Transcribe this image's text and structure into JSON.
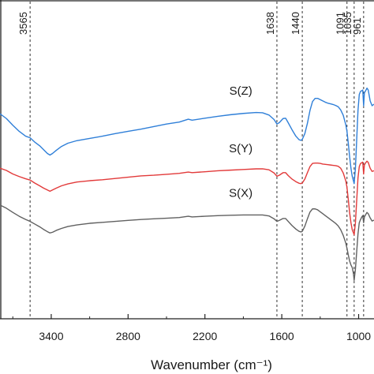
{
  "chart_data": {
    "type": "line",
    "xlabel": "Wavenumber (cm⁻¹)",
    "ylabel": "",
    "x_reversed": true,
    "xlim": [
      3800,
      880
    ],
    "ylim": [
      0,
      1
    ],
    "x_ticks": [
      3400,
      2800,
      2200,
      1600,
      1000
    ],
    "grid": false,
    "peak_markers": [
      "3565",
      "1638",
      "1440",
      "1091",
      "1035",
      "961"
    ],
    "series": [
      {
        "name": "S(Z)",
        "color": "#2f7fd8",
        "points": [
          [
            3800,
            0.64
          ],
          [
            3750,
            0.625
          ],
          [
            3700,
            0.604
          ],
          [
            3650,
            0.585
          ],
          [
            3600,
            0.57
          ],
          [
            3565,
            0.565
          ],
          [
            3530,
            0.552
          ],
          [
            3490,
            0.54
          ],
          [
            3460,
            0.528
          ],
          [
            3430,
            0.516
          ],
          [
            3410,
            0.511
          ],
          [
            3390,
            0.516
          ],
          [
            3360,
            0.526
          ],
          [
            3320,
            0.538
          ],
          [
            3270,
            0.548
          ],
          [
            3200,
            0.556
          ],
          [
            3100,
            0.563
          ],
          [
            3000,
            0.57
          ],
          [
            2900,
            0.578
          ],
          [
            2800,
            0.585
          ],
          [
            2700,
            0.592
          ],
          [
            2600,
            0.6
          ],
          [
            2500,
            0.608
          ],
          [
            2400,
            0.614
          ],
          [
            2330,
            0.623
          ],
          [
            2300,
            0.62
          ],
          [
            2200,
            0.626
          ],
          [
            2100,
            0.632
          ],
          [
            2000,
            0.637
          ],
          [
            1900,
            0.641
          ],
          [
            1800,
            0.644
          ],
          [
            1750,
            0.643
          ],
          [
            1700,
            0.636
          ],
          [
            1660,
            0.622
          ],
          [
            1638,
            0.608
          ],
          [
            1620,
            0.612
          ],
          [
            1590,
            0.625
          ],
          [
            1570,
            0.626
          ],
          [
            1550,
            0.612
          ],
          [
            1520,
            0.59
          ],
          [
            1490,
            0.57
          ],
          [
            1465,
            0.559
          ],
          [
            1450,
            0.557
          ],
          [
            1440,
            0.56
          ],
          [
            1420,
            0.578
          ],
          [
            1400,
            0.61
          ],
          [
            1380,
            0.65
          ],
          [
            1360,
            0.678
          ],
          [
            1340,
            0.688
          ],
          [
            1320,
            0.688
          ],
          [
            1300,
            0.684
          ],
          [
            1280,
            0.68
          ],
          [
            1260,
            0.676
          ],
          [
            1240,
            0.673
          ],
          [
            1220,
            0.671
          ],
          [
            1200,
            0.669
          ],
          [
            1180,
            0.666
          ],
          [
            1160,
            0.662
          ],
          [
            1140,
            0.652
          ],
          [
            1120,
            0.635
          ],
          [
            1100,
            0.605
          ],
          [
            1091,
            0.585
          ],
          [
            1080,
            0.545
          ],
          [
            1070,
            0.505
          ],
          [
            1060,
            0.47
          ],
          [
            1050,
            0.445
          ],
          [
            1040,
            0.43
          ],
          [
            1035,
            0.422
          ],
          [
            1025,
            0.47
          ],
          [
            1015,
            0.56
          ],
          [
            1005,
            0.65
          ],
          [
            995,
            0.7
          ],
          [
            985,
            0.71
          ],
          [
            975,
            0.712
          ],
          [
            968,
            0.714
          ],
          [
            961,
            0.665
          ],
          [
            955,
            0.705
          ],
          [
            945,
            0.712
          ],
          [
            935,
            0.72
          ],
          [
            925,
            0.714
          ],
          [
            910,
            0.68
          ],
          [
            895,
            0.665
          ],
          [
            880,
            0.67
          ]
        ]
      },
      {
        "name": "S(Y)",
        "color": "#e23a3a",
        "points": [
          [
            3800,
            0.47
          ],
          [
            3750,
            0.463
          ],
          [
            3700,
            0.452
          ],
          [
            3650,
            0.444
          ],
          [
            3600,
            0.437
          ],
          [
            3565,
            0.433
          ],
          [
            3530,
            0.424
          ],
          [
            3490,
            0.415
          ],
          [
            3460,
            0.408
          ],
          [
            3430,
            0.402
          ],
          [
            3410,
            0.398
          ],
          [
            3390,
            0.402
          ],
          [
            3360,
            0.408
          ],
          [
            3320,
            0.415
          ],
          [
            3270,
            0.421
          ],
          [
            3200,
            0.427
          ],
          [
            3100,
            0.431
          ],
          [
            3000,
            0.434
          ],
          [
            2900,
            0.438
          ],
          [
            2800,
            0.442
          ],
          [
            2700,
            0.446
          ],
          [
            2600,
            0.448
          ],
          [
            2500,
            0.451
          ],
          [
            2400,
            0.454
          ],
          [
            2330,
            0.458
          ],
          [
            2300,
            0.456
          ],
          [
            2200,
            0.459
          ],
          [
            2100,
            0.462
          ],
          [
            2000,
            0.464
          ],
          [
            1900,
            0.466
          ],
          [
            1800,
            0.468
          ],
          [
            1750,
            0.468
          ],
          [
            1700,
            0.465
          ],
          [
            1660,
            0.455
          ],
          [
            1638,
            0.445
          ],
          [
            1620,
            0.448
          ],
          [
            1590,
            0.456
          ],
          [
            1570,
            0.456
          ],
          [
            1550,
            0.447
          ],
          [
            1520,
            0.436
          ],
          [
            1490,
            0.428
          ],
          [
            1465,
            0.423
          ],
          [
            1450,
            0.422
          ],
          [
            1440,
            0.424
          ],
          [
            1420,
            0.436
          ],
          [
            1400,
            0.456
          ],
          [
            1380,
            0.475
          ],
          [
            1360,
            0.485
          ],
          [
            1340,
            0.486
          ],
          [
            1320,
            0.486
          ],
          [
            1300,
            0.485
          ],
          [
            1280,
            0.483
          ],
          [
            1260,
            0.482
          ],
          [
            1240,
            0.481
          ],
          [
            1220,
            0.48
          ],
          [
            1200,
            0.479
          ],
          [
            1180,
            0.478
          ],
          [
            1160,
            0.476
          ],
          [
            1140,
            0.47
          ],
          [
            1120,
            0.455
          ],
          [
            1100,
            0.43
          ],
          [
            1091,
            0.41
          ],
          [
            1080,
            0.37
          ],
          [
            1070,
            0.33
          ],
          [
            1060,
            0.3
          ],
          [
            1050,
            0.278
          ],
          [
            1040,
            0.268
          ],
          [
            1035,
            0.262
          ],
          [
            1025,
            0.3
          ],
          [
            1015,
            0.37
          ],
          [
            1005,
            0.44
          ],
          [
            995,
            0.475
          ],
          [
            985,
            0.485
          ],
          [
            975,
            0.487
          ],
          [
            968,
            0.489
          ],
          [
            961,
            0.452
          ],
          [
            955,
            0.48
          ],
          [
            945,
            0.487
          ],
          [
            935,
            0.492
          ],
          [
            925,
            0.488
          ],
          [
            910,
            0.47
          ],
          [
            895,
            0.46
          ],
          [
            880,
            0.462
          ]
        ]
      },
      {
        "name": "S(X)",
        "color": "#606060",
        "points": [
          [
            3800,
            0.355
          ],
          [
            3750,
            0.345
          ],
          [
            3700,
            0.332
          ],
          [
            3650,
            0.32
          ],
          [
            3600,
            0.31
          ],
          [
            3565,
            0.304
          ],
          [
            3530,
            0.296
          ],
          [
            3490,
            0.287
          ],
          [
            3460,
            0.279
          ],
          [
            3430,
            0.272
          ],
          [
            3410,
            0.268
          ],
          [
            3390,
            0.27
          ],
          [
            3360,
            0.276
          ],
          [
            3320,
            0.282
          ],
          [
            3270,
            0.288
          ],
          [
            3200,
            0.293
          ],
          [
            3100,
            0.298
          ],
          [
            3000,
            0.301
          ],
          [
            2900,
            0.304
          ],
          [
            2800,
            0.307
          ],
          [
            2700,
            0.31
          ],
          [
            2600,
            0.312
          ],
          [
            2500,
            0.314
          ],
          [
            2400,
            0.316
          ],
          [
            2330,
            0.32
          ],
          [
            2300,
            0.318
          ],
          [
            2200,
            0.32
          ],
          [
            2100,
            0.322
          ],
          [
            2000,
            0.323
          ],
          [
            1900,
            0.324
          ],
          [
            1800,
            0.324
          ],
          [
            1750,
            0.324
          ],
          [
            1700,
            0.321
          ],
          [
            1660,
            0.312
          ],
          [
            1638,
            0.304
          ],
          [
            1620,
            0.307
          ],
          [
            1590,
            0.313
          ],
          [
            1570,
            0.313
          ],
          [
            1550,
            0.304
          ],
          [
            1520,
            0.291
          ],
          [
            1490,
            0.28
          ],
          [
            1465,
            0.273
          ],
          [
            1450,
            0.271
          ],
          [
            1440,
            0.273
          ],
          [
            1420,
            0.289
          ],
          [
            1400,
            0.312
          ],
          [
            1380,
            0.333
          ],
          [
            1360,
            0.343
          ],
          [
            1340,
            0.343
          ],
          [
            1320,
            0.34
          ],
          [
            1300,
            0.334
          ],
          [
            1280,
            0.328
          ],
          [
            1260,
            0.322
          ],
          [
            1240,
            0.316
          ],
          [
            1220,
            0.31
          ],
          [
            1200,
            0.304
          ],
          [
            1180,
            0.298
          ],
          [
            1160,
            0.29
          ],
          [
            1140,
            0.278
          ],
          [
            1120,
            0.26
          ],
          [
            1100,
            0.236
          ],
          [
            1091,
            0.22
          ],
          [
            1080,
            0.198
          ],
          [
            1070,
            0.18
          ],
          [
            1060,
            0.168
          ],
          [
            1050,
            0.16
          ],
          [
            1040,
            0.14
          ],
          [
            1035,
            0.12
          ],
          [
            1025,
            0.155
          ],
          [
            1015,
            0.21
          ],
          [
            1005,
            0.265
          ],
          [
            995,
            0.3
          ],
          [
            985,
            0.31
          ],
          [
            975,
            0.318
          ],
          [
            968,
            0.322
          ],
          [
            961,
            0.3
          ],
          [
            955,
            0.318
          ],
          [
            945,
            0.325
          ],
          [
            935,
            0.332
          ],
          [
            925,
            0.328
          ],
          [
            910,
            0.315
          ],
          [
            895,
            0.305
          ],
          [
            880,
            0.308
          ]
        ]
      }
    ],
    "series_label_positions": [
      {
        "name": "S(Z)",
        "x": 1920,
        "y": 0.7
      },
      {
        "name": "S(Y)",
        "x": 1920,
        "y": 0.52
      },
      {
        "name": "S(X)",
        "x": 1920,
        "y": 0.38
      }
    ]
  }
}
